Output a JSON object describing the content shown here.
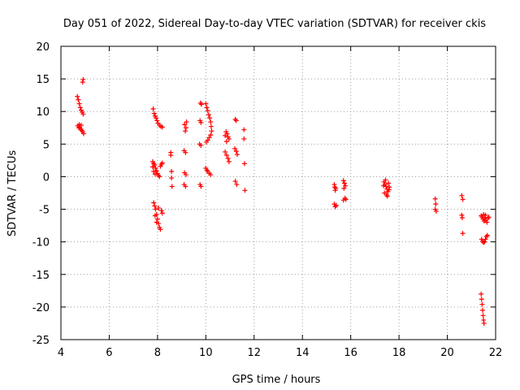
{
  "colors": {
    "series": "#ff0000",
    "grid": "#a0a0a0",
    "axis": "#000000",
    "background": "#ffffff"
  },
  "chart_data": {
    "type": "scatter",
    "title": "Day 051 of 2022, Sidereal Day-to-day VTEC variation (SDTVAR) for receiver ckis",
    "xlabel": "GPS time / hours",
    "ylabel": "SDTVAR / TECUs",
    "xlim": [
      4,
      22
    ],
    "ylim": [
      -25,
      20
    ],
    "xticks": [
      4,
      6,
      8,
      10,
      12,
      14,
      16,
      18,
      20,
      22
    ],
    "yticks": [
      -25,
      -20,
      -15,
      -10,
      -5,
      0,
      5,
      10,
      15,
      20
    ],
    "grid": true,
    "marker": "plus",
    "series": [
      {
        "name": "SDTVAR",
        "points": [
          [
            4.68,
            12.3
          ],
          [
            4.72,
            11.8
          ],
          [
            4.76,
            11.2
          ],
          [
            4.8,
            10.6
          ],
          [
            4.84,
            10.2
          ],
          [
            4.88,
            9.9
          ],
          [
            4.92,
            9.6
          ],
          [
            4.7,
            7.8
          ],
          [
            4.74,
            7.5
          ],
          [
            4.78,
            7.6
          ],
          [
            4.82,
            7.3
          ],
          [
            4.86,
            7.1
          ],
          [
            4.9,
            6.9
          ],
          [
            4.94,
            6.6
          ],
          [
            4.76,
            8.0
          ],
          [
            4.84,
            7.9
          ],
          [
            4.9,
            14.5
          ],
          [
            4.92,
            14.9
          ],
          [
            7.82,
            10.4
          ],
          [
            7.86,
            9.7
          ],
          [
            7.9,
            9.3
          ],
          [
            7.94,
            9.0
          ],
          [
            7.98,
            8.6
          ],
          [
            8.02,
            8.2
          ],
          [
            8.08,
            7.9
          ],
          [
            8.14,
            7.7
          ],
          [
            8.2,
            7.6
          ],
          [
            7.8,
            1.5
          ],
          [
            7.84,
            2.0
          ],
          [
            7.88,
            1.8
          ],
          [
            7.92,
            1.3
          ],
          [
            7.96,
            0.9
          ],
          [
            8.0,
            0.5
          ],
          [
            8.04,
            0.2
          ],
          [
            8.08,
            0.0
          ],
          [
            8.12,
            1.6
          ],
          [
            8.16,
            1.9
          ],
          [
            8.2,
            2.1
          ],
          [
            7.84,
            0.8
          ],
          [
            7.9,
            0.4
          ],
          [
            7.8,
            2.3
          ],
          [
            7.84,
            -4.0
          ],
          [
            7.88,
            -4.5
          ],
          [
            7.92,
            -5.0
          ],
          [
            7.96,
            -5.8
          ],
          [
            8.0,
            -6.5
          ],
          [
            8.04,
            -7.2
          ],
          [
            8.08,
            -7.8
          ],
          [
            8.12,
            -8.1
          ],
          [
            8.16,
            -5.2
          ],
          [
            8.2,
            -5.6
          ],
          [
            7.9,
            -6.0
          ],
          [
            7.96,
            -7.0
          ],
          [
            8.04,
            -4.8
          ],
          [
            8.55,
            3.7
          ],
          [
            8.55,
            3.3
          ],
          [
            8.58,
            0.8
          ],
          [
            8.58,
            -0.2
          ],
          [
            8.6,
            -1.5
          ],
          [
            9.12,
            8.0
          ],
          [
            9.18,
            7.5
          ],
          [
            9.15,
            7.0
          ],
          [
            9.2,
            8.4
          ],
          [
            9.1,
            4.0
          ],
          [
            9.16,
            3.7
          ],
          [
            9.12,
            0.6
          ],
          [
            9.18,
            0.3
          ],
          [
            9.1,
            -1.2
          ],
          [
            9.16,
            -1.5
          ],
          [
            9.78,
            11.3
          ],
          [
            9.82,
            11.1
          ],
          [
            9.76,
            8.6
          ],
          [
            9.8,
            8.3
          ],
          [
            9.74,
            5.0
          ],
          [
            9.8,
            4.8
          ],
          [
            9.76,
            -1.2
          ],
          [
            9.8,
            -1.5
          ],
          [
            10.0,
            11.2
          ],
          [
            10.04,
            10.6
          ],
          [
            10.08,
            10.1
          ],
          [
            10.12,
            9.5
          ],
          [
            10.16,
            9.0
          ],
          [
            10.2,
            8.4
          ],
          [
            10.22,
            7.7
          ],
          [
            10.24,
            7.0
          ],
          [
            10.2,
            6.4
          ],
          [
            10.14,
            6.0
          ],
          [
            10.08,
            5.6
          ],
          [
            10.02,
            5.3
          ],
          [
            10.0,
            1.3
          ],
          [
            10.04,
            1.0
          ],
          [
            10.08,
            0.8
          ],
          [
            10.14,
            0.5
          ],
          [
            10.2,
            0.3
          ],
          [
            10.8,
            6.3
          ],
          [
            10.84,
            6.9
          ],
          [
            10.88,
            6.6
          ],
          [
            10.92,
            6.1
          ],
          [
            10.96,
            5.8
          ],
          [
            10.86,
            5.4
          ],
          [
            10.8,
            3.8
          ],
          [
            10.86,
            3.3
          ],
          [
            10.92,
            2.8
          ],
          [
            10.96,
            2.3
          ],
          [
            11.22,
            8.8
          ],
          [
            11.26,
            8.6
          ],
          [
            11.2,
            4.3
          ],
          [
            11.26,
            3.9
          ],
          [
            11.3,
            3.4
          ],
          [
            11.22,
            -0.7
          ],
          [
            11.28,
            -1.2
          ],
          [
            11.58,
            7.2
          ],
          [
            11.58,
            5.8
          ],
          [
            11.6,
            2.0
          ],
          [
            11.62,
            -2.1
          ],
          [
            15.32,
            -1.2
          ],
          [
            15.34,
            -1.6
          ],
          [
            15.36,
            -2.1
          ],
          [
            15.38,
            -1.8
          ],
          [
            15.32,
            -4.2
          ],
          [
            15.36,
            -4.6
          ],
          [
            15.4,
            -4.4
          ],
          [
            15.7,
            -0.6
          ],
          [
            15.74,
            -1.0
          ],
          [
            15.78,
            -1.4
          ],
          [
            15.72,
            -1.8
          ],
          [
            15.76,
            -3.3
          ],
          [
            15.7,
            -3.6
          ],
          [
            15.8,
            -3.5
          ],
          [
            17.38,
            -0.8
          ],
          [
            17.42,
            -1.2
          ],
          [
            17.46,
            -1.5
          ],
          [
            17.5,
            -1.9
          ],
          [
            17.54,
            -2.3
          ],
          [
            17.58,
            -2.0
          ],
          [
            17.44,
            -0.5
          ],
          [
            17.48,
            -2.8
          ],
          [
            17.52,
            -3.0
          ],
          [
            17.4,
            -2.5
          ],
          [
            17.56,
            -1.0
          ],
          [
            17.6,
            -1.6
          ],
          [
            17.36,
            -1.4
          ],
          [
            19.5,
            -3.4
          ],
          [
            19.52,
            -4.2
          ],
          [
            19.5,
            -5.0
          ],
          [
            19.54,
            -5.3
          ],
          [
            20.6,
            -2.9
          ],
          [
            20.64,
            -3.5
          ],
          [
            20.6,
            -5.9
          ],
          [
            20.62,
            -6.3
          ],
          [
            20.64,
            -8.7
          ],
          [
            21.4,
            -6.0
          ],
          [
            21.44,
            -6.2
          ],
          [
            21.48,
            -6.5
          ],
          [
            21.52,
            -6.8
          ],
          [
            21.56,
            -6.3
          ],
          [
            21.6,
            -6.7
          ],
          [
            21.64,
            -7.0
          ],
          [
            21.68,
            -6.4
          ],
          [
            21.72,
            -6.2
          ],
          [
            21.5,
            -5.8
          ],
          [
            21.58,
            -5.9
          ],
          [
            21.42,
            -9.6
          ],
          [
            21.46,
            -9.9
          ],
          [
            21.5,
            -10.1
          ],
          [
            21.54,
            -10.0
          ],
          [
            21.58,
            -9.6
          ],
          [
            21.62,
            -9.2
          ],
          [
            21.66,
            -9.0
          ],
          [
            21.4,
            -18.0
          ],
          [
            21.42,
            -18.8
          ],
          [
            21.44,
            -19.6
          ],
          [
            21.46,
            -20.5
          ],
          [
            21.48,
            -21.3
          ],
          [
            21.5,
            -22.0
          ],
          [
            21.52,
            -22.5
          ]
        ]
      }
    ]
  }
}
